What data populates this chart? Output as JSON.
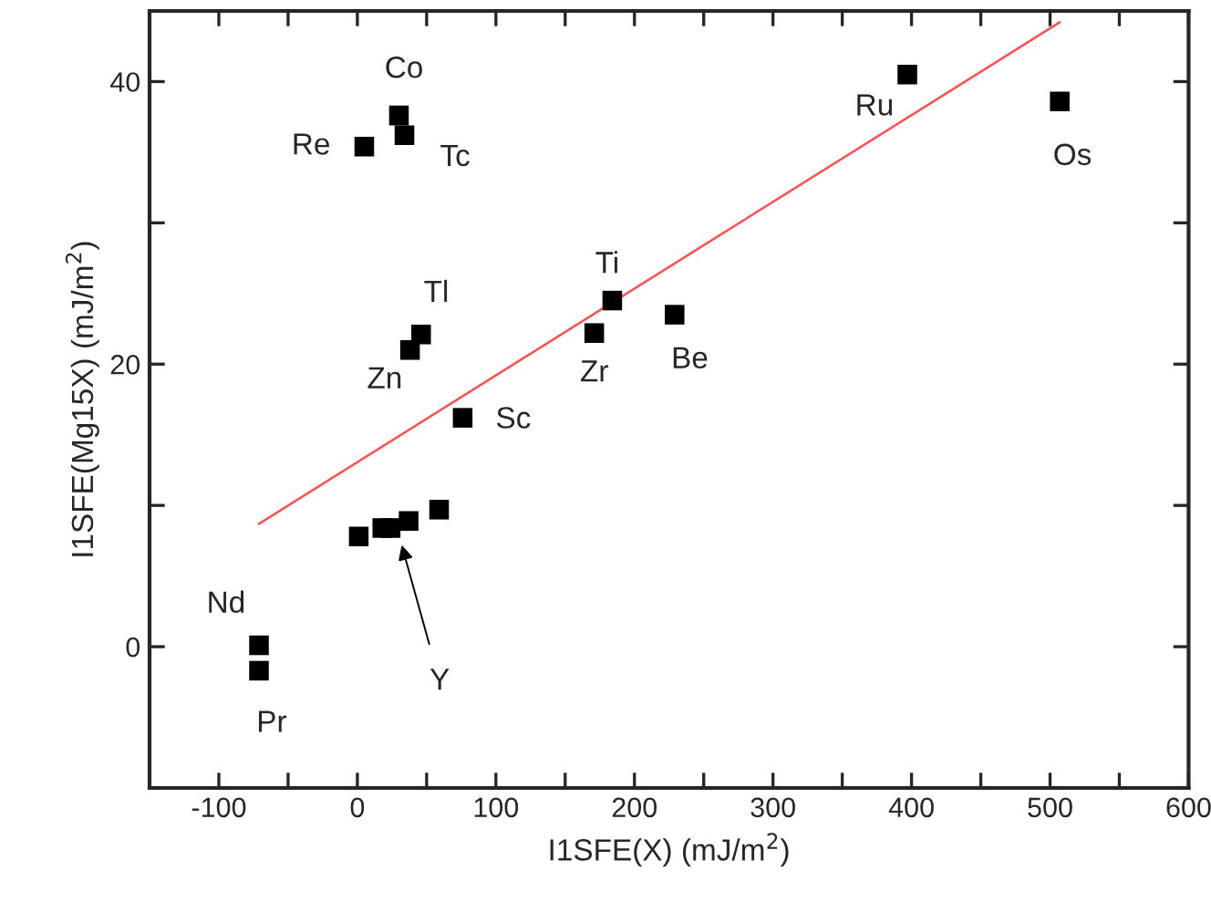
{
  "chart_data": {
    "type": "scatter",
    "xlabel": "I1SFE(X) (mJ/m$^{2}$)",
    "ylabel": "I1SFE(Mg15X) (mJ/m$^{2}$)",
    "xlim": [
      -150,
      600
    ],
    "ylim": [
      -10,
      45
    ],
    "xticks": [
      {
        "value": -150,
        "label": null
      },
      -100,
      {
        "value": -50,
        "label": null
      },
      0,
      {
        "value": 50,
        "label": null
      },
      100,
      {
        "value": 150,
        "label": null
      },
      200,
      {
        "value": 250,
        "label": null
      },
      300,
      {
        "value": 350,
        "label": null
      },
      400,
      {
        "value": 450,
        "label": null
      },
      500,
      {
        "value": 550,
        "label": null
      },
      600
    ],
    "yticks": [
      {
        "value": -10,
        "label": null
      },
      0,
      {
        "value": 10,
        "label": null
      },
      20,
      {
        "value": 30,
        "label": null
      },
      40
    ],
    "grid": false,
    "legend": false,
    "series": [
      {
        "color": "#000000",
        "marker": "square",
        "x": [
          5,
          30,
          34,
          46,
          38,
          76,
          184,
          171,
          229,
          397,
          507,
          -71,
          -71,
          1,
          18,
          24,
          37,
          59
        ],
        "values": [
          35.4,
          37.6,
          36.2,
          22.1,
          21.0,
          16.2,
          24.5,
          22.2,
          23.5,
          40.5,
          38.6,
          0.1,
          -1.7,
          7.8,
          8.4,
          8.4,
          8.9,
          9.7
        ]
      },
      {
        "type": "line",
        "color": "#ff5050",
        "line_style": "solid",
        "marker": "none",
        "x": [
          -71,
          507
        ],
        "values": [
          8.7,
          44.2
        ]
      }
    ],
    "annotations": [
      {
        "text": "Re",
        "x": 5,
        "y": 35.4
      },
      {
        "text": "Co",
        "x": 30,
        "y": 37.6
      },
      {
        "text": "Tc",
        "x": 34,
        "y": 36.2
      },
      {
        "text": "Tl",
        "x": 46,
        "y": 22.1
      },
      {
        "text": "Zn",
        "x": 38,
        "y": 21.0
      },
      {
        "text": "Sc",
        "x": 76,
        "y": 16.2
      },
      {
        "text": "Ti",
        "x": 184,
        "y": 24.5
      },
      {
        "text": "Zr",
        "x": 171,
        "y": 22.2
      },
      {
        "text": "Be",
        "x": 229,
        "y": 23.5
      },
      {
        "text": "Ru",
        "x": 397,
        "y": 40.5
      },
      {
        "text": "Os",
        "x": 507,
        "y": 38.6
      },
      {
        "text": "Nd",
        "x": -71,
        "y": 0.1
      },
      {
        "text": "Pr",
        "x": -71,
        "y": -1.7
      },
      {
        "text": "Y",
        "x": 32,
        "y": 7.2
      }
    ]
  }
}
